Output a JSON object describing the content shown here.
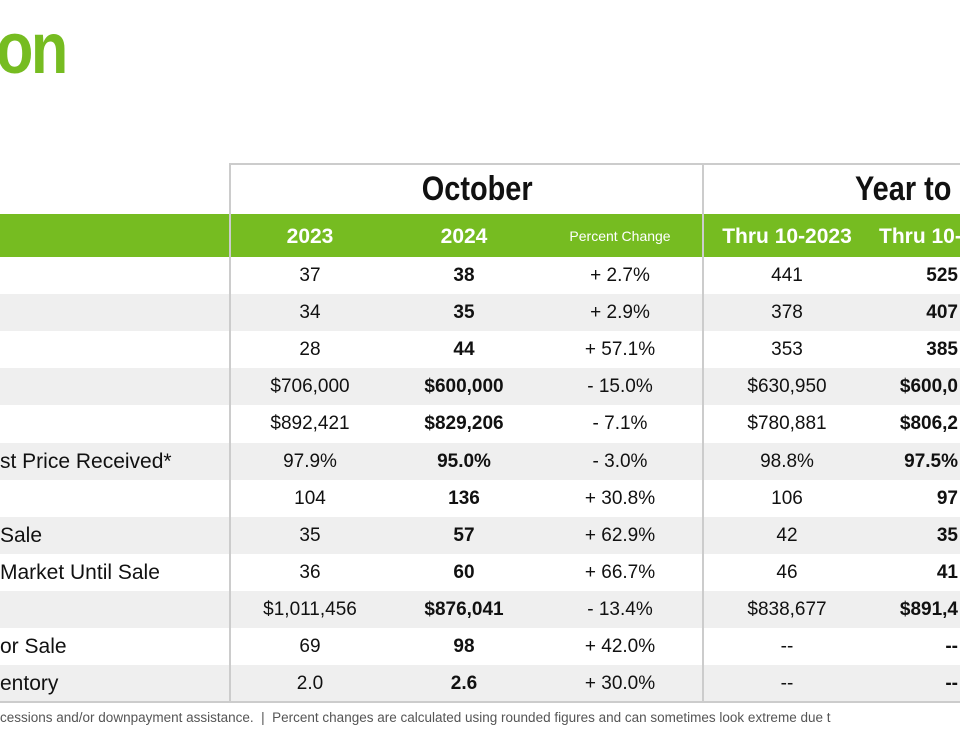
{
  "header": {
    "title": "on"
  },
  "table": {
    "groups": [
      "October",
      "Year to"
    ],
    "columns": [
      "2023",
      "2024",
      "Percent Change",
      "Thru 10-2023",
      "Thru 10-"
    ],
    "rows": [
      {
        "cells": [
          "37",
          "38",
          "+ 2.7%",
          "441",
          "525"
        ]
      },
      {
        "cells": [
          "34",
          "35",
          "+ 2.9%",
          "378",
          "407"
        ]
      },
      {
        "cells": [
          "28",
          "44",
          "+ 57.1%",
          "353",
          "385"
        ]
      },
      {
        "cells": [
          "$706,000",
          "$600,000",
          "- 15.0%",
          "$630,950",
          "$600,0"
        ]
      },
      {
        "cells": [
          "$892,421",
          "$829,206",
          "- 7.1%",
          "$780,881",
          "$806,2"
        ]
      },
      {
        "label": "st Price Received*",
        "cells": [
          "97.9%",
          "95.0%",
          "- 3.0%",
          "98.8%",
          "97.5%"
        ]
      },
      {
        "cells": [
          "104",
          "136",
          "+ 30.8%",
          "106",
          "97"
        ]
      },
      {
        "label": "Sale",
        "cells": [
          "35",
          "57",
          "+ 62.9%",
          "42",
          "35"
        ]
      },
      {
        "label": "Market Until Sale",
        "cells": [
          "36",
          "60",
          "+ 66.7%",
          "46",
          "41"
        ]
      },
      {
        "cells": [
          "$1,011,456",
          "$876,041",
          "- 13.4%",
          "$838,677",
          "$891,4"
        ]
      },
      {
        "label": "or Sale",
        "cells": [
          "69",
          "98",
          "+ 42.0%",
          "--",
          "--"
        ]
      },
      {
        "label": "entory",
        "cells": [
          "2.0",
          "2.6",
          "+ 30.0%",
          "--",
          "--"
        ]
      }
    ]
  },
  "footnote": "cessions and/or downpayment assistance.  |  Percent changes are calculated using rounded figures and can sometimes look extreme due t"
}
